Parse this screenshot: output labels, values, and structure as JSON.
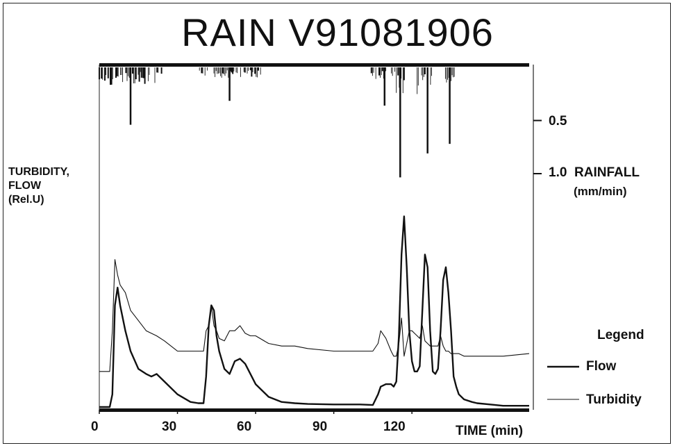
{
  "chart_data": {
    "type": "line",
    "title": "RAIN V91081906",
    "ylabel_left_lines": [
      "TURBIDITY,",
      "FLOW",
      "(Rel.U)"
    ],
    "ylabel_right_lines": [
      "RAINFALL",
      "(mm/min)"
    ],
    "xlabel": "TIME (min)",
    "xlim": [
      0,
      165
    ],
    "ylim_left": [
      0,
      100
    ],
    "rainfall_axis": {
      "ticks": [
        0.5,
        1.0
      ],
      "tick_labels": [
        "0.5",
        "1.0"
      ],
      "range": [
        0,
        1.2
      ]
    },
    "x_ticks": [
      0,
      30,
      60,
      90,
      120
    ],
    "x_tick_labels": [
      "0",
      "30",
      "60",
      "90",
      "120"
    ],
    "grid": false,
    "legend_position": "right",
    "legend_title": "Legend",
    "series": [
      {
        "name": "Flow",
        "style": "thick",
        "x": [
          0,
          2,
          3,
          4,
          5,
          6,
          7,
          8,
          10,
          12,
          15,
          18,
          20,
          22,
          25,
          30,
          35,
          38,
          40,
          41,
          42,
          43,
          44,
          45,
          46,
          48,
          50,
          52,
          54,
          56,
          58,
          60,
          65,
          70,
          75,
          80,
          90,
          100,
          105,
          107,
          108,
          110,
          112,
          113,
          114,
          115,
          116,
          117,
          118,
          119,
          120,
          121,
          122,
          123,
          124,
          125,
          126,
          127,
          128,
          129,
          130,
          131,
          132,
          133,
          134,
          135,
          136,
          137,
          138,
          140,
          143,
          145,
          150,
          155,
          165
        ],
        "y": [
          0,
          0,
          0,
          0,
          5,
          40,
          47,
          40,
          30,
          22,
          15,
          13,
          12,
          13,
          10,
          5,
          2,
          1.5,
          1.5,
          12,
          32,
          40,
          38,
          28,
          22,
          15,
          13,
          18,
          19,
          17,
          13,
          9,
          4,
          2,
          1.5,
          1.2,
          1,
          1,
          0.8,
          5,
          8,
          9,
          9,
          8,
          10,
          28,
          60,
          75,
          55,
          30,
          18,
          14,
          14,
          16,
          38,
          60,
          55,
          30,
          14,
          13,
          15,
          30,
          50,
          55,
          45,
          30,
          12,
          8,
          5,
          3,
          2,
          1.5,
          1,
          0.5,
          0.5
        ]
      },
      {
        "name": "Turbidity",
        "style": "thin",
        "x": [
          0,
          2,
          3,
          4,
          5,
          6,
          7,
          8,
          10,
          12,
          15,
          18,
          20,
          22,
          25,
          30,
          35,
          38,
          40,
          41,
          42,
          43,
          44,
          45,
          46,
          48,
          50,
          52,
          54,
          56,
          58,
          60,
          65,
          70,
          75,
          80,
          90,
          100,
          105,
          107,
          108,
          110,
          112,
          113,
          114,
          115,
          116,
          117,
          118,
          119,
          120,
          121,
          122,
          123,
          124,
          125,
          126,
          127,
          128,
          129,
          130,
          131,
          132,
          133,
          134,
          135,
          136,
          137,
          138,
          140,
          143,
          145,
          150,
          155,
          165
        ],
        "y": [
          14,
          14,
          14,
          14,
          30,
          58,
          52,
          48,
          45,
          38,
          34,
          30,
          29,
          28,
          26,
          22,
          22,
          22,
          22,
          30,
          32,
          40,
          32,
          30,
          27,
          26,
          30,
          30,
          32,
          29,
          28,
          28,
          25,
          24,
          24,
          23,
          22,
          22,
          22,
          25,
          30,
          27,
          22,
          20,
          20,
          25,
          35,
          20,
          25,
          30,
          30,
          29,
          28,
          27,
          32,
          26,
          25,
          24,
          24,
          24,
          24,
          28,
          24,
          22,
          22,
          21,
          21,
          21,
          21,
          20,
          20,
          20,
          20,
          20,
          21
        ]
      }
    ],
    "rainfall_events": [
      {
        "x": [
          0,
          24
        ],
        "intensity": 0.6
      },
      {
        "x": [
          38,
          62
        ],
        "intensity": 0.35
      },
      {
        "x": [
          104,
          115
        ],
        "intensity": 0.4
      },
      {
        "x": [
          114,
          117
        ],
        "intensity": 1.15
      },
      {
        "x": [
          122,
          130
        ],
        "intensity": 0.9
      },
      {
        "x": [
          132,
          137
        ],
        "intensity": 0.8
      }
    ]
  }
}
